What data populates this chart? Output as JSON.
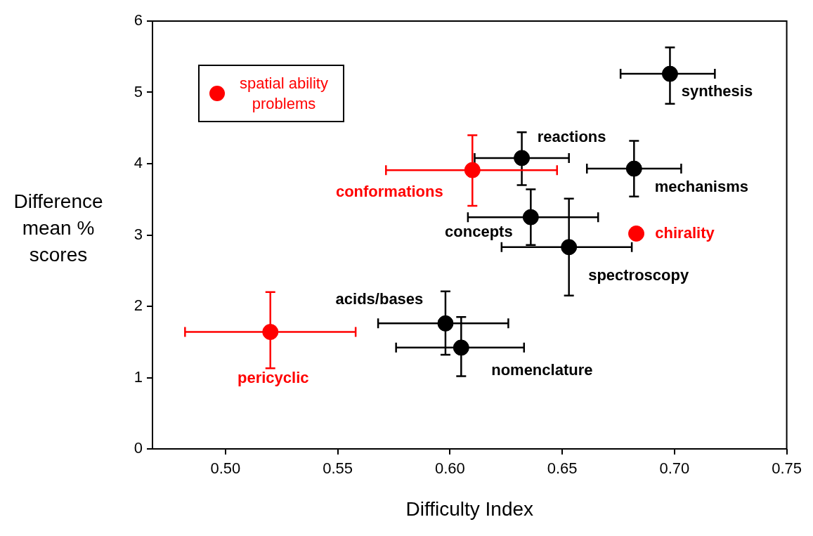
{
  "chart_data": {
    "type": "scatter",
    "xlabel": "Difficulty Index",
    "ylabel": "Difference mean % scores",
    "xlim": [
      0.4675,
      0.75
    ],
    "ylim": [
      0,
      6
    ],
    "xticks": [
      {
        "value": 0.5,
        "label": "0.50"
      },
      {
        "value": 0.55,
        "label": "0.55"
      },
      {
        "value": 0.6,
        "label": "0.60"
      },
      {
        "value": 0.65,
        "label": "0.65"
      },
      {
        "value": 0.7,
        "label": "0.70"
      },
      {
        "value": 0.75,
        "label": "0.75"
      }
    ],
    "yticks": [
      0,
      1,
      2,
      3,
      4,
      5,
      6
    ],
    "legend": "top left",
    "marker": "circle",
    "series": [
      {
        "color": "#000000",
        "x": [
          0.698,
          0.632,
          0.682,
          0.636,
          0.653,
          0.598,
          0.605
        ],
        "values": [
          5.26,
          4.08,
          3.93,
          3.25,
          2.83,
          1.76,
          1.42
        ],
        "errors": [
          [
            4.84,
            5.63
          ],
          [
            3.7,
            4.44
          ],
          [
            3.54,
            4.32
          ],
          [
            2.86,
            3.64
          ],
          [
            2.15,
            3.51
          ],
          [
            1.32,
            2.21
          ],
          [
            1.02,
            1.85
          ]
        ],
        "xerrors": [
          [
            0.676,
            0.718
          ],
          [
            0.611,
            0.653
          ],
          [
            0.661,
            0.703
          ],
          [
            0.608,
            0.666
          ],
          [
            0.623,
            0.681
          ],
          [
            0.568,
            0.626
          ],
          [
            0.576,
            0.633
          ]
        ]
      },
      {
        "name": "spatial ability problems",
        "color": "#ff0000",
        "x": [
          0.61,
          0.683,
          0.52
        ],
        "values": [
          3.91,
          3.02,
          1.64
        ],
        "errors": [
          [
            3.41,
            4.4
          ],
          null,
          [
            1.13,
            2.2
          ]
        ],
        "xerrors": [
          [
            0.5715,
            0.6477
          ],
          null,
          [
            0.482,
            0.558
          ]
        ]
      }
    ],
    "annotations": [
      {
        "text": "synthesis",
        "x": 0.698,
        "y": 5.26
      },
      {
        "text": "reactions",
        "x": 0.632,
        "y": 4.08
      },
      {
        "text": "mechanisms",
        "x": 0.682,
        "y": 3.93
      },
      {
        "text": "conformations",
        "x": 0.61,
        "y": 3.91
      },
      {
        "text": "concepts",
        "x": 0.636,
        "y": 3.25
      },
      {
        "text": "chirality",
        "x": 0.683,
        "y": 3.02
      },
      {
        "text": "spectroscopy",
        "x": 0.653,
        "y": 2.83
      },
      {
        "text": "acids/bases",
        "x": 0.598,
        "y": 1.76
      },
      {
        "text": "nomenclature",
        "x": 0.605,
        "y": 1.42
      },
      {
        "text": "pericyclic",
        "x": 0.52,
        "y": 1.64
      }
    ]
  }
}
